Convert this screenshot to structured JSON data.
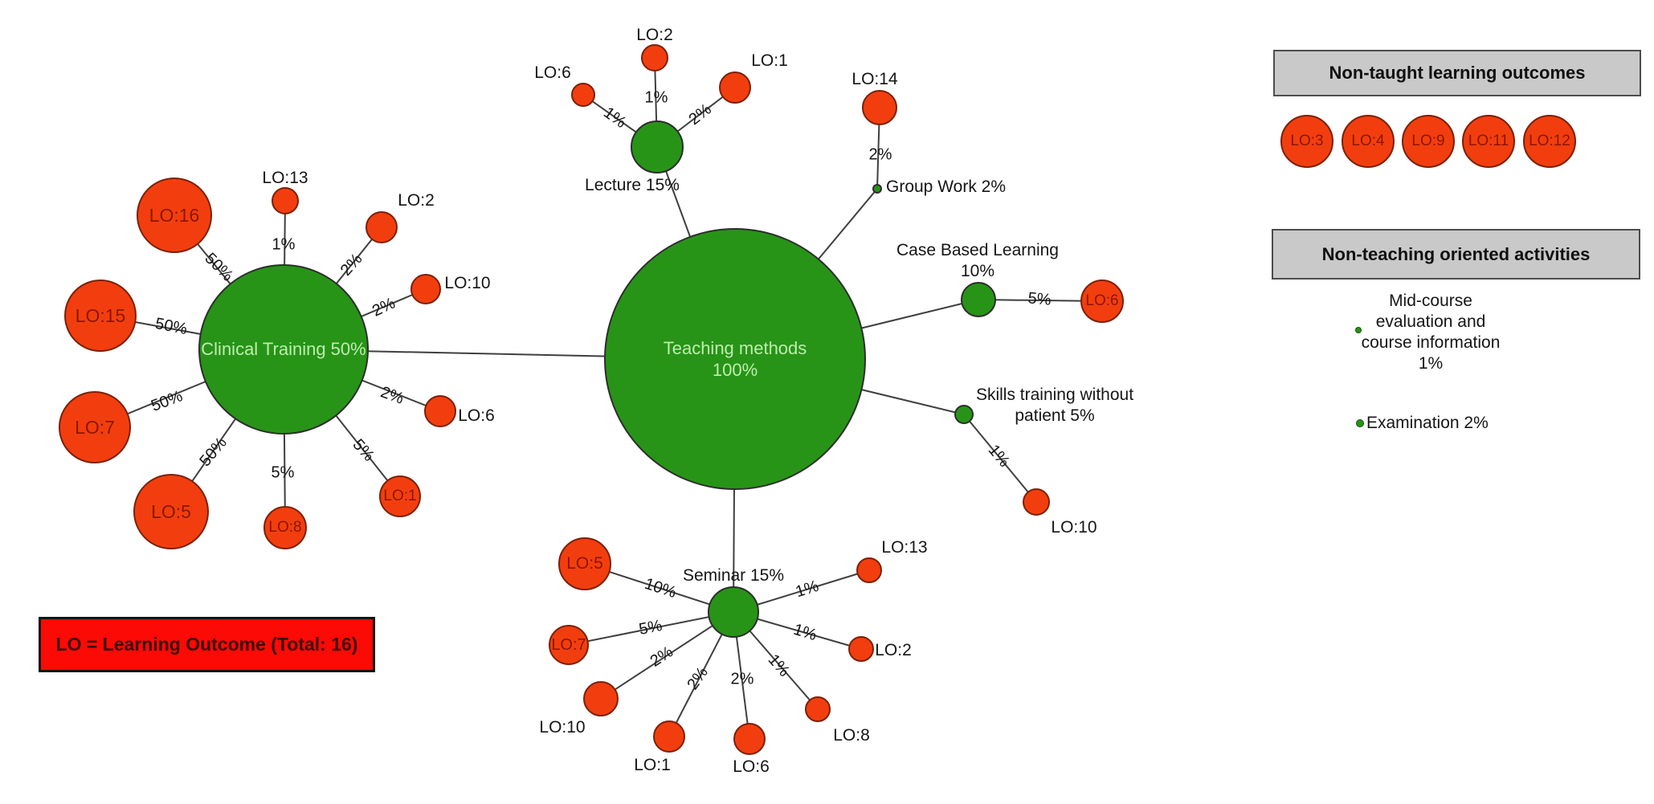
{
  "colors": {
    "method_green": "#279417",
    "method_border": "#2d2d2d",
    "outcome_red": "#f23e0e",
    "outcome_border": "#7c2007",
    "outcome_text": "#8c1500",
    "method_text": "#bdeeae",
    "edge": "#3f3f3f",
    "legend_gray": "#c9c9c9",
    "note_red": "#fb0a06"
  },
  "diagram": {
    "hub": {
      "id": "teaching",
      "label": "Teaching methods",
      "value": "100%"
    },
    "clusters": [
      {
        "id": "clinical",
        "label": "Clinical Training 50%",
        "outcomes": [
          {
            "id": "c-lo16",
            "label": "LO:16",
            "pct": "50%"
          },
          {
            "id": "c-lo13",
            "label": "LO:13",
            "pct": "1%"
          },
          {
            "id": "c-lo2",
            "label": "LO:2",
            "pct": "2%"
          },
          {
            "id": "c-lo15",
            "label": "LO:15",
            "pct": "50%"
          },
          {
            "id": "c-lo10",
            "label": "LO:10",
            "pct": "2%"
          },
          {
            "id": "c-lo7",
            "label": "LO:7",
            "pct": "50%"
          },
          {
            "id": "c-lo6",
            "label": "LO:6",
            "pct": "2%"
          },
          {
            "id": "c-lo5",
            "label": "LO:5",
            "pct": "50%"
          },
          {
            "id": "c-lo8",
            "label": "LO:8",
            "pct": "5%"
          },
          {
            "id": "c-lo1",
            "label": "LO:1",
            "pct": "5%"
          }
        ]
      },
      {
        "id": "lecture",
        "label": "Lecture 15%",
        "outcomes": [
          {
            "id": "l-lo6",
            "label": "LO:6",
            "pct": "1%"
          },
          {
            "id": "l-lo2",
            "label": "LO:2",
            "pct": "1%"
          },
          {
            "id": "l-lo1",
            "label": "LO:1",
            "pct": "2%"
          }
        ]
      },
      {
        "id": "groupwork",
        "label": "Group Work 2%",
        "outcomes": [
          {
            "id": "g-lo14",
            "label": "LO:14",
            "pct": "2%"
          }
        ]
      },
      {
        "id": "cbl",
        "label": "Case Based Learning\n10%",
        "outcomes": [
          {
            "id": "cbl-lo6",
            "label": "LO:6",
            "pct": "5%"
          }
        ]
      },
      {
        "id": "skills",
        "label": "Skills training without\npatient 5%",
        "outcomes": [
          {
            "id": "s-lo10",
            "label": "LO:10",
            "pct": "1%"
          }
        ]
      },
      {
        "id": "seminar",
        "label": "Seminar 15%",
        "outcomes": [
          {
            "id": "sem-lo5",
            "label": "LO:5",
            "pct": "10%"
          },
          {
            "id": "sem-lo7",
            "label": "LO:7",
            "pct": "5%"
          },
          {
            "id": "sem-lo10",
            "label": "LO:10",
            "pct": "2%"
          },
          {
            "id": "sem-lo1",
            "label": "LO:1",
            "pct": "2%"
          },
          {
            "id": "sem-lo6",
            "label": "LO:6",
            "pct": "2%"
          },
          {
            "id": "sem-lo8",
            "label": "LO:8",
            "pct": "1%"
          },
          {
            "id": "sem-lo2",
            "label": "LO:2",
            "pct": "1%"
          },
          {
            "id": "sem-lo13",
            "label": "LO:13",
            "pct": "1%"
          }
        ]
      }
    ]
  },
  "legend_non_taught": {
    "title": "Non-taught learning outcomes",
    "items": [
      "LO:3",
      "LO:4",
      "LO:9",
      "LO:11",
      "LO:12"
    ]
  },
  "legend_non_teaching": {
    "title": "Non-teaching oriented activities",
    "items": [
      {
        "id": "midcourse",
        "lines": [
          "Mid-course",
          "evaluation and",
          "course information",
          "1%"
        ]
      },
      {
        "id": "examination",
        "label": "Examination 2%"
      }
    ]
  },
  "note": {
    "text": "LO = Learning Outcome (Total: 16)"
  }
}
